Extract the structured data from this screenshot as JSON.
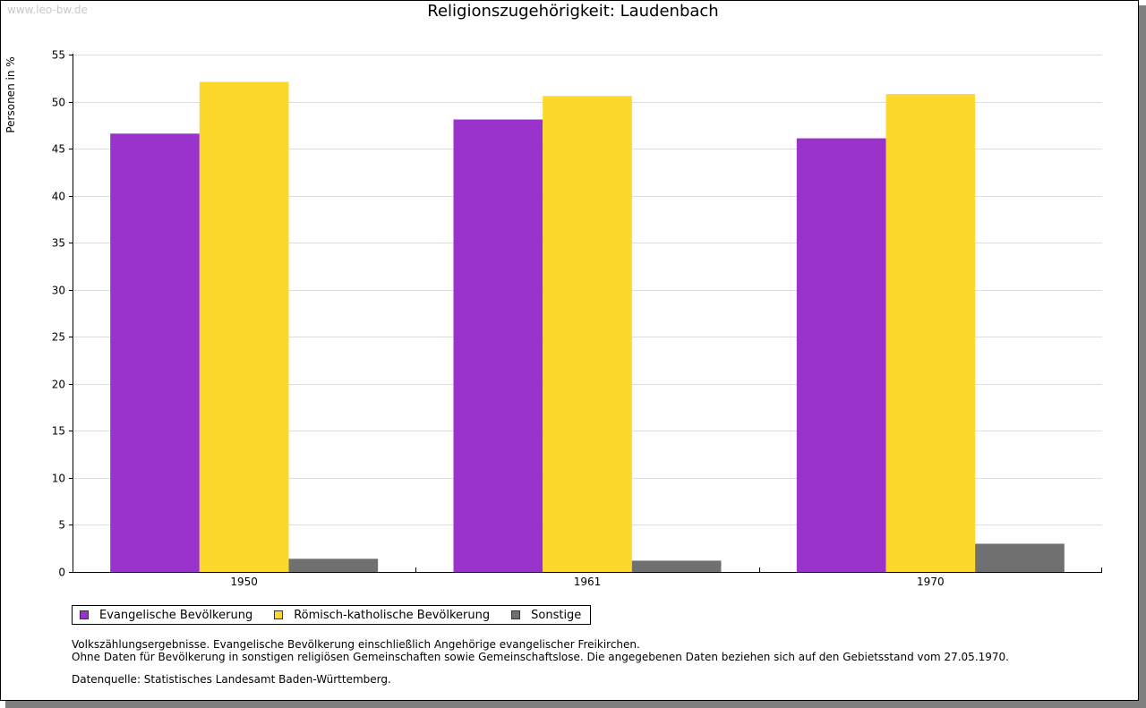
{
  "watermark": "www.leo-bw.de",
  "chart_data": {
    "type": "bar",
    "title": "Religionszugehörigkeit: Laudenbach",
    "xlabel": "",
    "ylabel": "Personen in %",
    "ylim": [
      0,
      55
    ],
    "yticks": [
      0,
      5,
      10,
      15,
      20,
      25,
      30,
      35,
      40,
      45,
      50,
      55
    ],
    "grid": true,
    "legend_position": "bottom-left",
    "categories": [
      "1950",
      "1961",
      "1970"
    ],
    "series": [
      {
        "name": "Evangelische Bevölkerung",
        "color": "#9933cc",
        "values": [
          46.6,
          48.1,
          46.1
        ]
      },
      {
        "name": "Römisch-katholische Bevölkerung",
        "color": "#fcd82c",
        "values": [
          52.1,
          50.6,
          50.8
        ]
      },
      {
        "name": "Sonstige",
        "color": "#707070",
        "values": [
          1.4,
          1.2,
          3.0
        ]
      }
    ]
  },
  "notes": {
    "line1": "Volkszählungsergebnisse. Evangelische Bevölkerung einschließlich Angehörige evangelischer Freikirchen.",
    "line2": "Ohne Daten für Bevölkerung in sonstigen religiösen Gemeinschaften sowie Gemeinschaftslose. Die angegebenen Daten beziehen sich auf den Gebietsstand vom 27.05.1970."
  },
  "source": "Datenquelle: Statistisches Landesamt Baden-Württemberg."
}
